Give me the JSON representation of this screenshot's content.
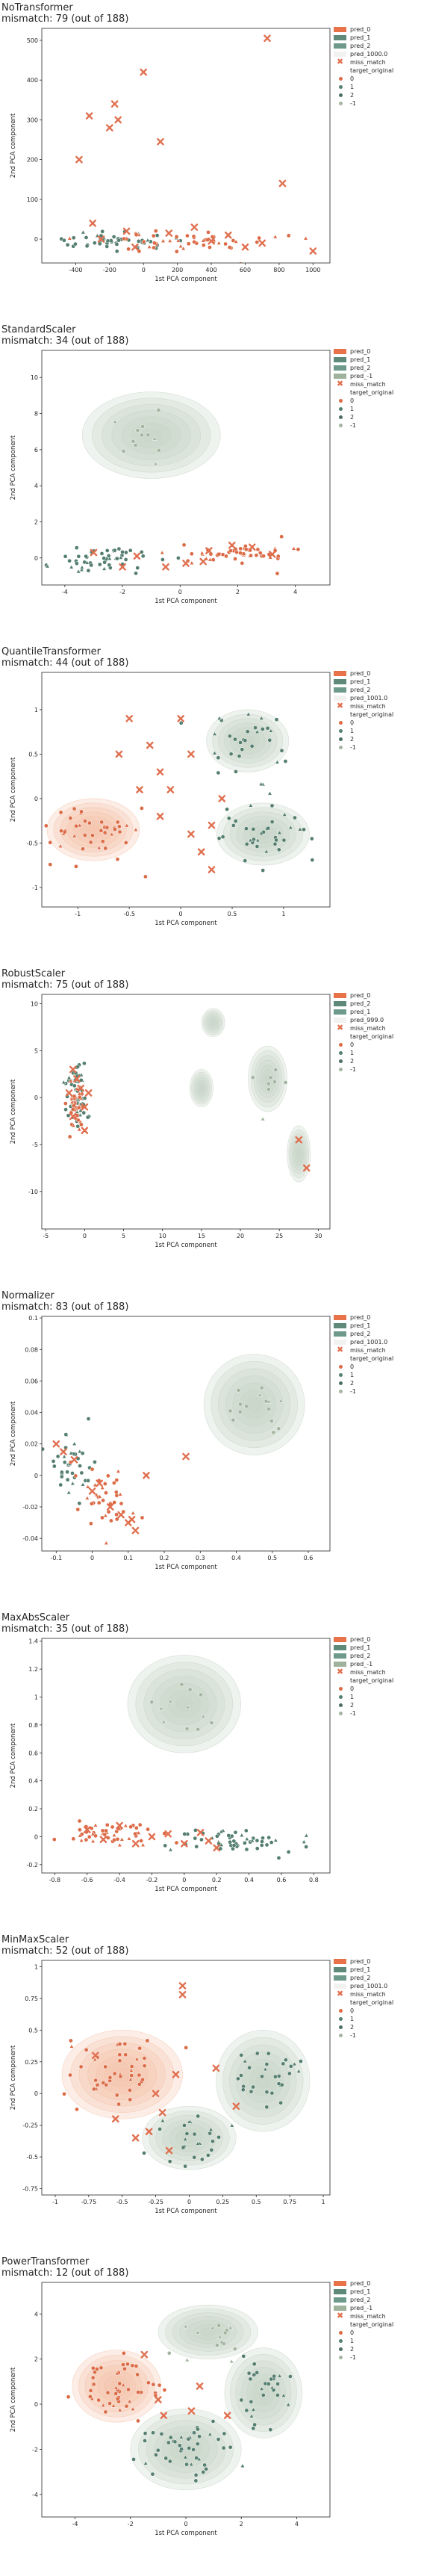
{
  "colors": {
    "pred_0": "#e8734a",
    "pred_1": "#5f8a7a",
    "pred_2": "#6d9a8a",
    "pred_neg1": "#9fb29c",
    "kde_green": "#c7d3c4",
    "kde_orange": "#f3c2aa",
    "target_0": "#dc6b47",
    "target_1": "#557f70",
    "target_2": "#4f6f62",
    "target_neg1": "#a3b5a0",
    "mismatch": "#e07050"
  },
  "chart_data": [
    {
      "type": "scatter",
      "title_line1": "NoTransformer",
      "title_line2": "mismatch: 79 (out of 188)",
      "xlabel": "1st PCA component",
      "ylabel": "2nd PCA component",
      "xlim": [
        -600,
        1100
      ],
      "ylim": [
        -60,
        530
      ],
      "xticks": [
        -400,
        -200,
        0,
        200,
        400,
        600,
        800,
        1000
      ],
      "yticks": [
        0,
        100,
        200,
        300,
        400,
        500
      ],
      "legend": [
        "pred_0",
        "pred_1",
        "pred_2",
        "pred_1000.0",
        "miss_match",
        "target_original",
        "0",
        "1",
        "2",
        "-1"
      ],
      "kde": [],
      "clusters": [
        {
          "cx": -200,
          "cy": -5,
          "sx": 180,
          "sy": 12,
          "n": 50,
          "cls": "1"
        },
        {
          "cx": 250,
          "cy": -10,
          "sx": 250,
          "sy": 15,
          "n": 50,
          "cls": "0"
        }
      ],
      "mismatch_points": [
        [
          -380,
          200
        ],
        [
          -320,
          310
        ],
        [
          -200,
          280
        ],
        [
          -170,
          340
        ],
        [
          -150,
          300
        ],
        [
          0,
          420
        ],
        [
          100,
          245
        ],
        [
          730,
          505
        ],
        [
          820,
          140
        ],
        [
          -300,
          40
        ],
        [
          -100,
          20
        ],
        [
          150,
          15
        ],
        [
          400,
          -5
        ],
        [
          600,
          -20
        ],
        [
          1000,
          -30
        ],
        [
          300,
          30
        ],
        [
          -50,
          -20
        ],
        [
          500,
          10
        ],
        [
          700,
          -10
        ],
        [
          -250,
          0
        ]
      ]
    },
    {
      "type": "scatter",
      "title_line1": "StandardScaler",
      "title_line2": "mismatch: 34 (out of 188)",
      "xlabel": "1st PCA component",
      "ylabel": "2nd PCA component",
      "xlim": [
        -4.8,
        5.2
      ],
      "ylim": [
        -1.5,
        11.5
      ],
      "xticks": [
        -4,
        -2,
        0,
        2,
        4
      ],
      "yticks": [
        0,
        2,
        4,
        6,
        8,
        10
      ],
      "legend": [
        "pred_0",
        "pred_1",
        "pred_2",
        "pred_-1",
        "miss_match",
        "target_original",
        "0",
        "1",
        "2",
        "-1"
      ],
      "kde": [
        {
          "cx": -1.0,
          "cy": 6.8,
          "rx": 2.4,
          "ry": 2.4,
          "color": "green"
        }
      ],
      "clusters": [
        {
          "cx": -1.2,
          "cy": 6.8,
          "sx": 0.6,
          "sy": 0.8,
          "n": 12,
          "cls": "-1"
        },
        {
          "cx": -2.5,
          "cy": 0.0,
          "sx": 1.0,
          "sy": 0.35,
          "n": 55,
          "cls": "1"
        },
        {
          "cx": 2.0,
          "cy": 0.2,
          "sx": 1.1,
          "sy": 0.3,
          "n": 55,
          "cls": "0"
        }
      ],
      "mismatch_points": [
        [
          -3.0,
          0.3
        ],
        [
          -1.5,
          0.1
        ],
        [
          0.2,
          -0.3
        ],
        [
          1.0,
          0.4
        ],
        [
          2.5,
          0.6
        ],
        [
          -0.5,
          -0.5
        ],
        [
          3.2,
          0.2
        ],
        [
          -2.0,
          -0.5
        ],
        [
          0.8,
          -0.2
        ],
        [
          1.8,
          0.7
        ]
      ]
    },
    {
      "type": "scatter",
      "title_line1": "QuantileTransformer",
      "title_line2": "mismatch: 44 (out of 188)",
      "xlabel": "1st PCA component",
      "ylabel": "2nd PCA component",
      "xlim": [
        -1.35,
        1.45
      ],
      "ylim": [
        -1.22,
        1.42
      ],
      "xticks": [
        -1.0,
        -0.5,
        0.0,
        0.5,
        1.0
      ],
      "yticks": [
        -1.0,
        -0.5,
        0.0,
        0.5,
        1.0
      ],
      "legend": [
        "pred_0",
        "pred_1",
        "pred_2",
        "pred_1001.0",
        "miss_match",
        "target_original",
        "0",
        "1",
        "2",
        "-1"
      ],
      "kde": [
        {
          "cx": -0.85,
          "cy": -0.35,
          "rx": 0.45,
          "ry": 0.35,
          "color": "orange"
        },
        {
          "cx": 0.65,
          "cy": 0.65,
          "rx": 0.4,
          "ry": 0.35,
          "color": "green"
        },
        {
          "cx": 0.8,
          "cy": -0.4,
          "rx": 0.45,
          "ry": 0.35,
          "color": "green"
        }
      ],
      "clusters": [
        {
          "cx": -0.85,
          "cy": -0.35,
          "sx": 0.25,
          "sy": 0.2,
          "n": 45,
          "cls": "0"
        },
        {
          "cx": 0.65,
          "cy": 0.65,
          "sx": 0.2,
          "sy": 0.2,
          "n": 30,
          "cls": "1"
        },
        {
          "cx": 0.8,
          "cy": -0.35,
          "sx": 0.25,
          "sy": 0.2,
          "n": 40,
          "cls": "1"
        }
      ],
      "mismatch_points": [
        [
          -0.5,
          0.9
        ],
        [
          -0.3,
          0.6
        ],
        [
          -0.2,
          0.3
        ],
        [
          -0.1,
          0.1
        ],
        [
          0.1,
          -0.4
        ],
        [
          0.2,
          -0.6
        ],
        [
          -0.4,
          0.1
        ],
        [
          0.3,
          -0.3
        ],
        [
          0.0,
          0.9
        ],
        [
          -0.6,
          0.5
        ],
        [
          0.3,
          -0.8
        ],
        [
          -0.2,
          -0.2
        ],
        [
          0.1,
          0.5
        ],
        [
          0.4,
          0.0
        ]
      ]
    },
    {
      "type": "scatter",
      "title_line1": "RobustScaler",
      "title_line2": "mismatch: 75 (out of 188)",
      "xlabel": "1st PCA component",
      "ylabel": "2nd PCA component",
      "xlim": [
        -5.5,
        31.5
      ],
      "ylim": [
        -14,
        11
      ],
      "xticks": [
        -5,
        0,
        5,
        10,
        15,
        20,
        25,
        30
      ],
      "yticks": [
        -10,
        -5,
        0,
        5,
        10
      ],
      "legend": [
        "pred_0",
        "pred_2",
        "pred_1",
        "pred_999.0",
        "miss_match",
        "target_original",
        "0",
        "1",
        "2",
        "-1"
      ],
      "kde": [
        {
          "cx": 16.5,
          "cy": 8.0,
          "rx": 1.5,
          "ry": 1.5,
          "color": "green"
        },
        {
          "cx": 15.0,
          "cy": 1.0,
          "rx": 1.5,
          "ry": 2.0,
          "color": "green"
        },
        {
          "cx": 23.5,
          "cy": 2.0,
          "rx": 2.5,
          "ry": 3.5,
          "color": "green"
        },
        {
          "cx": 27.5,
          "cy": -6.0,
          "rx": 1.5,
          "ry": 3.0,
          "color": "green"
        }
      ],
      "clusters": [
        {
          "cx": -1.0,
          "cy": 0.0,
          "sx": 0.6,
          "sy": 1.5,
          "n": 70,
          "cls": "1"
        },
        {
          "cx": -1.0,
          "cy": -1.0,
          "sx": 0.6,
          "sy": 1.5,
          "n": 40,
          "cls": "0"
        },
        {
          "cx": 23.5,
          "cy": 2.0,
          "sx": 1.2,
          "sy": 1.5,
          "n": 8,
          "cls": "-1"
        }
      ],
      "mismatch_points": [
        [
          -1.5,
          3.0
        ],
        [
          0.0,
          -3.5
        ],
        [
          -0.5,
          1.0
        ],
        [
          -1.5,
          -2.0
        ],
        [
          0.5,
          0.5
        ],
        [
          27.5,
          -4.5
        ],
        [
          28.5,
          -7.5
        ],
        [
          -1.0,
          2.0
        ],
        [
          0.0,
          -1.0
        ],
        [
          -2.0,
          0.5
        ]
      ]
    },
    {
      "type": "scatter",
      "title_line1": "Normalizer",
      "title_line2": "mismatch: 83 (out of 188)",
      "xlabel": "1st PCA component",
      "ylabel": "2nd PCA component",
      "xlim": [
        -0.14,
        0.66
      ],
      "ylim": [
        -0.048,
        0.101
      ],
      "xticks": [
        -0.1,
        0.0,
        0.1,
        0.2,
        0.3,
        0.4,
        0.5,
        0.6
      ],
      "yticks": [
        -0.04,
        -0.02,
        0.0,
        0.02,
        0.04,
        0.06,
        0.08,
        0.1
      ],
      "legend": [
        "pred_0",
        "pred_1",
        "pred_2",
        "pred_1001.0",
        "miss_match",
        "target_original",
        "0",
        "1",
        "2",
        "-1"
      ],
      "kde": [
        {
          "cx": 0.45,
          "cy": 0.045,
          "rx": 0.14,
          "ry": 0.032,
          "color": "green"
        }
      ],
      "clusters": [
        {
          "cx": 0.45,
          "cy": 0.048,
          "sx": 0.05,
          "sy": 0.012,
          "n": 15,
          "cls": "-1"
        },
        {
          "cx": -0.05,
          "cy": 0.005,
          "sx": 0.03,
          "sy": 0.01,
          "n": 40,
          "cls": "1"
        },
        {
          "cx": 0.03,
          "cy": -0.015,
          "sx": 0.04,
          "sy": 0.01,
          "n": 40,
          "cls": "0"
        }
      ],
      "mismatch_points": [
        [
          -0.1,
          0.02
        ],
        [
          -0.08,
          0.015
        ],
        [
          0.0,
          -0.01
        ],
        [
          0.05,
          -0.02
        ],
        [
          0.1,
          -0.03
        ],
        [
          0.12,
          -0.035
        ],
        [
          0.26,
          0.012
        ],
        [
          0.15,
          0.0
        ],
        [
          -0.05,
          0.01
        ],
        [
          0.08,
          -0.025
        ],
        [
          0.02,
          -0.005
        ],
        [
          0.11,
          -0.028
        ]
      ]
    },
    {
      "type": "scatter",
      "title_line1": "MaxAbsScaler",
      "title_line2": "mismatch: 35 (out of 188)",
      "xlabel": "1st PCA component",
      "ylabel": "2nd PCA component",
      "xlim": [
        -0.88,
        0.9
      ],
      "ylim": [
        -0.26,
        1.42
      ],
      "xticks": [
        -0.8,
        -0.6,
        -0.4,
        -0.2,
        0.0,
        0.2,
        0.4,
        0.6,
        0.8
      ],
      "yticks": [
        -0.2,
        0.0,
        0.2,
        0.4,
        0.6,
        0.8,
        1.0,
        1.2,
        1.4
      ],
      "legend": [
        "pred_0",
        "pred_1",
        "pred_2",
        "pred_-1",
        "miss_match",
        "target_original",
        "0",
        "1",
        "2",
        "-1"
      ],
      "kde": [
        {
          "cx": 0.0,
          "cy": 0.95,
          "rx": 0.35,
          "ry": 0.35,
          "color": "green"
        }
      ],
      "clusters": [
        {
          "cx": 0.0,
          "cy": 0.95,
          "sx": 0.15,
          "sy": 0.12,
          "n": 12,
          "cls": "-1"
        },
        {
          "cx": -0.45,
          "cy": 0.02,
          "sx": 0.15,
          "sy": 0.04,
          "n": 50,
          "cls": "0"
        },
        {
          "cx": 0.3,
          "cy": -0.02,
          "sx": 0.22,
          "sy": 0.04,
          "n": 55,
          "cls": "1"
        }
      ],
      "mismatch_points": [
        [
          -0.6,
          0.05
        ],
        [
          -0.4,
          0.08
        ],
        [
          -0.2,
          0.0
        ],
        [
          0.0,
          -0.05
        ],
        [
          0.2,
          -0.08
        ],
        [
          -0.3,
          -0.05
        ],
        [
          0.1,
          0.03
        ],
        [
          -0.5,
          -0.02
        ],
        [
          0.15,
          -0.03
        ],
        [
          -0.1,
          0.02
        ]
      ]
    },
    {
      "type": "scatter",
      "title_line1": "MinMaxScaler",
      "title_line2": "mismatch: 52 (out of 188)",
      "xlabel": "1st PCA component",
      "ylabel": "2nd PCA component",
      "xlim": [
        -1.1,
        1.05
      ],
      "ylim": [
        -0.8,
        1.05
      ],
      "xticks": [
        -1.0,
        -0.75,
        -0.5,
        -0.25,
        0.0,
        0.25,
        0.5,
        0.75,
        1.0
      ],
      "yticks": [
        -0.75,
        -0.5,
        -0.25,
        0.0,
        0.25,
        0.5,
        0.75,
        1.0
      ],
      "legend": [
        "pred_0",
        "pred_1",
        "pred_2",
        "pred_1001.0",
        "miss_match",
        "target_original",
        "0",
        "1",
        "2",
        "-1"
      ],
      "kde": [
        {
          "cx": -0.5,
          "cy": 0.15,
          "rx": 0.45,
          "ry": 0.35,
          "color": "orange"
        },
        {
          "cx": 0.55,
          "cy": 0.1,
          "rx": 0.35,
          "ry": 0.4,
          "color": "green"
        },
        {
          "cx": 0.0,
          "cy": -0.35,
          "rx": 0.35,
          "ry": 0.25,
          "color": "green"
        }
      ],
      "clusters": [
        {
          "cx": -0.55,
          "cy": 0.2,
          "sx": 0.2,
          "sy": 0.15,
          "n": 45,
          "cls": "0"
        },
        {
          "cx": 0.6,
          "cy": 0.15,
          "sx": 0.15,
          "sy": 0.15,
          "n": 30,
          "cls": "1"
        },
        {
          "cx": 0.0,
          "cy": -0.35,
          "sx": 0.18,
          "sy": 0.12,
          "n": 25,
          "cls": "1"
        }
      ],
      "mismatch_points": [
        [
          -0.05,
          0.85
        ],
        [
          -0.05,
          0.78
        ],
        [
          -0.2,
          -0.15
        ],
        [
          -0.3,
          -0.3
        ],
        [
          -0.4,
          -0.35
        ],
        [
          -0.15,
          -0.45
        ],
        [
          0.2,
          0.2
        ],
        [
          -0.7,
          0.3
        ],
        [
          -0.25,
          0.0
        ],
        [
          0.35,
          -0.1
        ],
        [
          -0.55,
          -0.2
        ],
        [
          -0.1,
          0.15
        ]
      ]
    },
    {
      "type": "scatter",
      "title_line1": "PowerTransformer",
      "title_line2": "mismatch: 12 (out of 188)",
      "xlabel": "1st PCA component",
      "ylabel": "2nd PCA component",
      "xlim": [
        -5.2,
        5.2
      ],
      "ylim": [
        -5.0,
        5.4
      ],
      "xticks": [
        -4,
        -2,
        0,
        2,
        4
      ],
      "yticks": [
        -4,
        -2,
        0,
        2,
        4
      ],
      "legend": [
        "pred_0",
        "pred_1",
        "pred_2",
        "pred_-1",
        "miss_match",
        "target_original",
        "0",
        "1",
        "2",
        "-1"
      ],
      "kde": [
        {
          "cx": -2.5,
          "cy": 0.8,
          "rx": 1.6,
          "ry": 1.6,
          "color": "orange"
        },
        {
          "cx": 0.0,
          "cy": -2.0,
          "rx": 2.0,
          "ry": 1.8,
          "color": "green"
        },
        {
          "cx": 2.8,
          "cy": 0.5,
          "rx": 1.4,
          "ry": 2.0,
          "color": "green"
        },
        {
          "cx": 0.8,
          "cy": 3.2,
          "rx": 1.8,
          "ry": 1.2,
          "color": "green"
        }
      ],
      "clusters": [
        {
          "cx": -2.5,
          "cy": 0.8,
          "sx": 0.7,
          "sy": 0.7,
          "n": 50,
          "cls": "0"
        },
        {
          "cx": 0.0,
          "cy": -2.0,
          "sx": 0.9,
          "sy": 0.8,
          "n": 45,
          "cls": "1"
        },
        {
          "cx": 2.8,
          "cy": 0.5,
          "sx": 0.6,
          "sy": 0.9,
          "n": 30,
          "cls": "1"
        },
        {
          "cx": 0.8,
          "cy": 3.2,
          "sx": 0.8,
          "sy": 0.6,
          "n": 15,
          "cls": "-1"
        }
      ],
      "mismatch_points": [
        [
          -1.0,
          0.2
        ],
        [
          -0.8,
          -0.5
        ],
        [
          0.5,
          0.8
        ],
        [
          1.5,
          -0.5
        ],
        [
          -1.5,
          2.2
        ],
        [
          0.2,
          -0.3
        ]
      ]
    }
  ]
}
